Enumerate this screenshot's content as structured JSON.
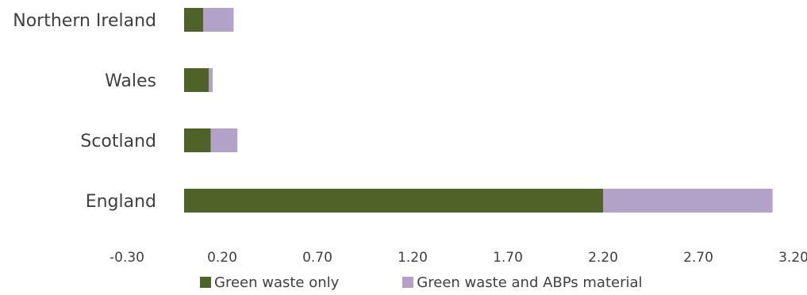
{
  "chart_data": {
    "type": "bar",
    "orientation": "horizontal",
    "stacked": true,
    "categories": [
      "Northern Ireland",
      "Wales",
      "Scotland",
      "England"
    ],
    "series": [
      {
        "name": "Green waste only",
        "values": [
          0.1,
          0.13,
          0.14,
          2.2
        ],
        "color": "#4f6228"
      },
      {
        "name": "Green waste and ABPs material",
        "values": [
          0.16,
          0.02,
          0.14,
          0.89
        ],
        "color": "#b3a2c7"
      }
    ],
    "xticks": [
      "-0.30",
      "0.20",
      "0.70",
      "1.20",
      "1.70",
      "2.20",
      "2.70",
      "3.20"
    ],
    "xlim": [
      -0.3,
      3.2
    ],
    "grid": false,
    "legend_position": "bottom",
    "title": "",
    "xlabel": "",
    "ylabel": ""
  }
}
